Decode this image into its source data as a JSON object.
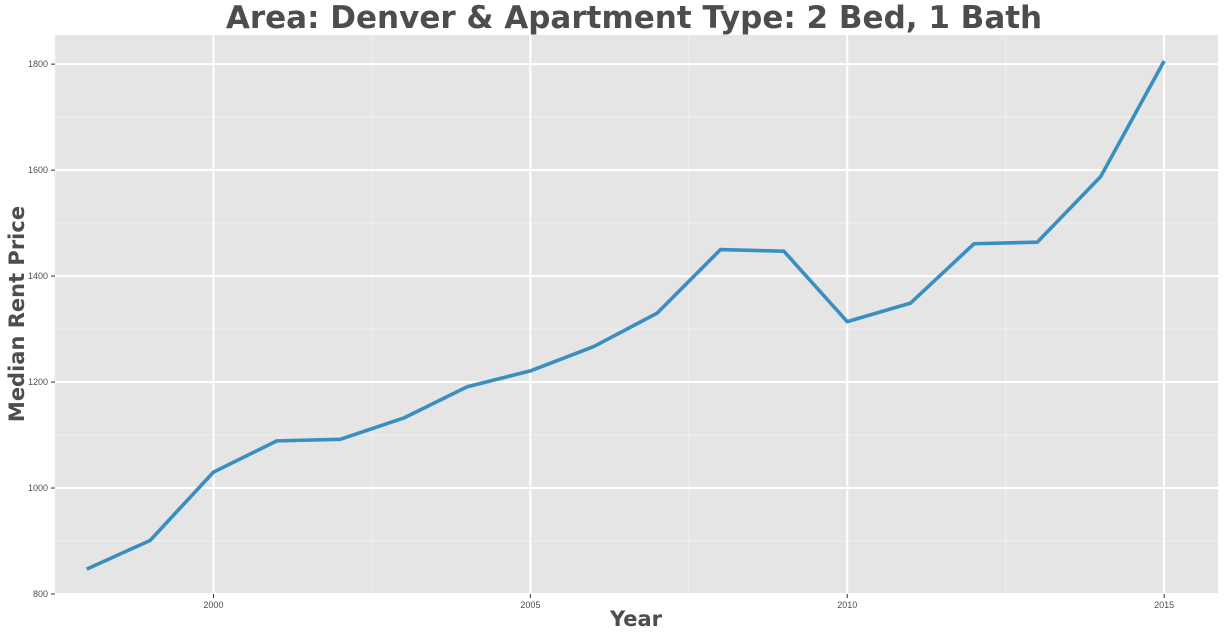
{
  "chart_data": {
    "type": "line",
    "title": "Area: Denver & Apartment Type: 2 Bed, 1 Bath",
    "xlabel": "Year",
    "ylabel": "Median Rent Price",
    "x": [
      1998,
      1999,
      2000,
      2001,
      2002,
      2003,
      2004,
      2005,
      2006,
      2007,
      2008,
      2009,
      2010,
      2011,
      2012,
      2013,
      2014,
      2015
    ],
    "series": [
      {
        "values": [
          847,
          901,
          1030,
          1089,
          1092,
          1132,
          1191,
          1221,
          1267,
          1330,
          1450,
          1447,
          1314,
          1349,
          1461,
          1464,
          1588,
          1806
        ],
        "color": "#3a8fc1"
      }
    ],
    "xlim": [
      1997.5,
      2015.85
    ],
    "ylim": [
      800,
      1855
    ],
    "xticks": [
      2000,
      2005,
      2010,
      2015
    ],
    "xtick_labels": [
      "2000",
      "2005",
      "2010",
      "2015"
    ],
    "yticks": [
      800,
      1000,
      1200,
      1400,
      1600,
      1800
    ],
    "ytick_labels": [
      "800",
      "1000",
      "1200",
      "1400",
      "1600",
      "1800"
    ],
    "grid": true,
    "legend": "none",
    "panel_background": "#e5e5e5",
    "grid_color": "#ffffff"
  }
}
